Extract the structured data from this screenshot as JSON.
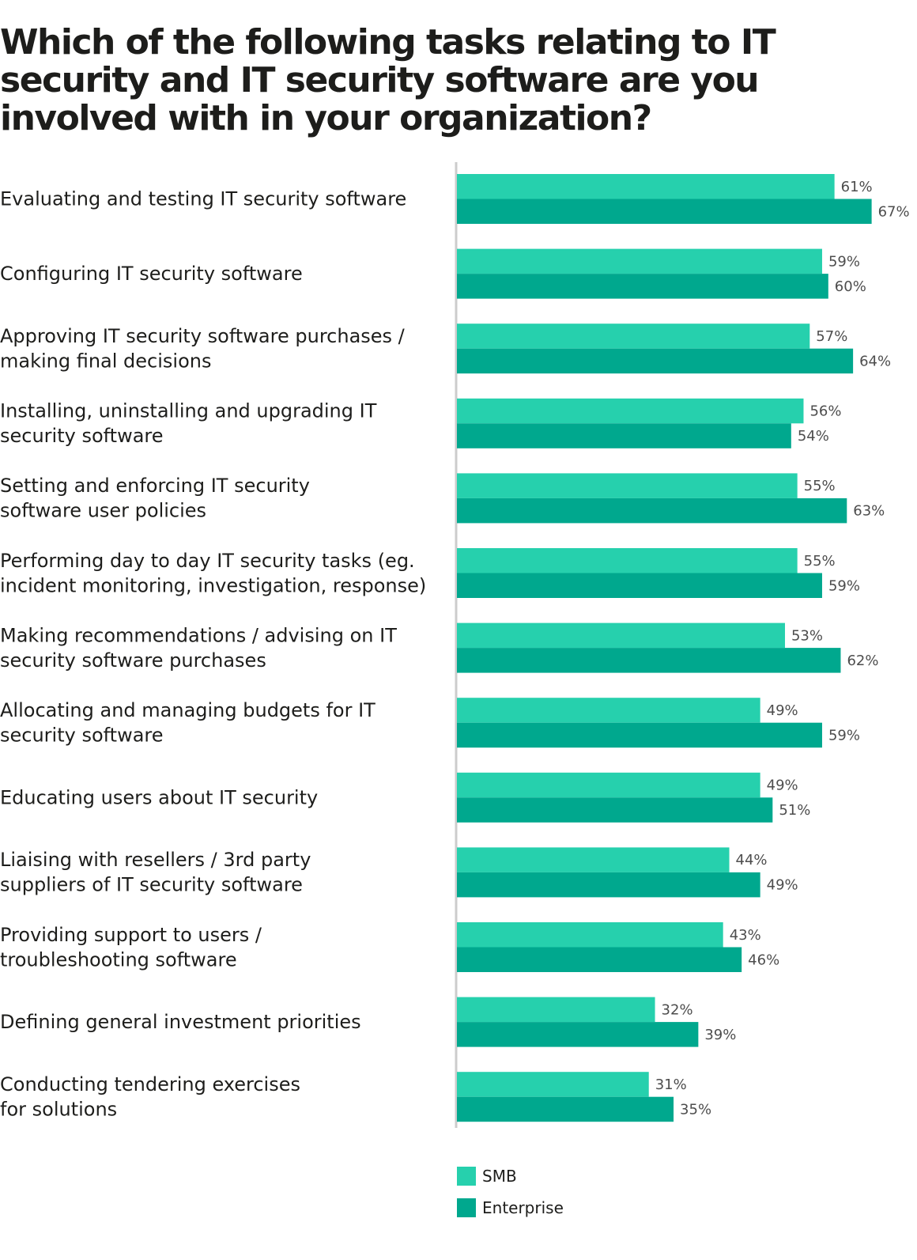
{
  "title": "Which of the following tasks relating to IT security and IT security software are you involved with in your organization?",
  "colors": {
    "smb": "#26d0ad",
    "enterprise": "#00a88e",
    "axis": "#cccccc"
  },
  "chart_data": {
    "type": "bar",
    "orientation": "horizontal",
    "categories": [
      [
        "Evaluating and testing IT security software"
      ],
      [
        "Configuring IT security software"
      ],
      [
        "Approving IT security software purchases /",
        "making final decisions"
      ],
      [
        "Installing, uninstalling and upgrading IT",
        "security software"
      ],
      [
        "Setting and enforcing IT security",
        "software user policies"
      ],
      [
        "Performing day to day IT security tasks (eg.",
        "incident monitoring, investigation, response)"
      ],
      [
        "Making recommendations / advising on IT",
        "security software purchases"
      ],
      [
        "Allocating and managing budgets for IT",
        "security software"
      ],
      [
        "Educating users about IT security"
      ],
      [
        "Liaising with resellers / 3rd party",
        "suppliers of IT security software"
      ],
      [
        "Providing support to users /",
        "troubleshooting software"
      ],
      [
        "Defining general investment priorities"
      ],
      [
        "Conducting tendering exercises",
        "for solutions"
      ]
    ],
    "series": [
      {
        "name": "SMB",
        "values": [
          61,
          59,
          57,
          56,
          55,
          55,
          53,
          49,
          49,
          44,
          43,
          32,
          31
        ]
      },
      {
        "name": "Enterprise",
        "values": [
          67,
          60,
          64,
          54,
          63,
          59,
          62,
          59,
          51,
          49,
          46,
          39,
          35
        ]
      }
    ],
    "value_suffix": "%",
    "legend_position": "bottom-left",
    "grid": false
  }
}
